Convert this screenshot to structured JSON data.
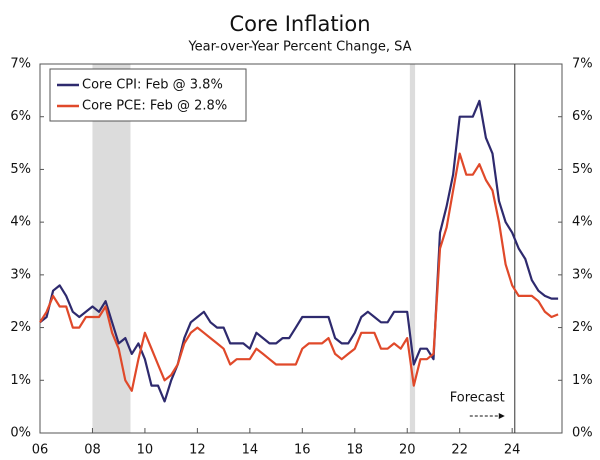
{
  "chart_data": {
    "type": "line",
    "title": "Core Inflation",
    "subtitle": "Year-over-Year Percent Change, SA",
    "x": [
      2006,
      2006.25,
      2006.5,
      2006.75,
      2007,
      2007.25,
      2007.5,
      2007.75,
      2008,
      2008.25,
      2008.5,
      2008.75,
      2009,
      2009.25,
      2009.5,
      2009.75,
      2010,
      2010.25,
      2010.5,
      2010.75,
      2011,
      2011.25,
      2011.5,
      2011.75,
      2012,
      2012.25,
      2012.5,
      2012.75,
      2013,
      2013.25,
      2013.5,
      2013.75,
      2014,
      2014.25,
      2014.5,
      2014.75,
      2015,
      2015.25,
      2015.5,
      2015.75,
      2016,
      2016.25,
      2016.5,
      2016.75,
      2017,
      2017.25,
      2017.5,
      2017.75,
      2018,
      2018.25,
      2018.5,
      2018.75,
      2019,
      2019.25,
      2019.5,
      2019.75,
      2020,
      2020.25,
      2020.5,
      2020.75,
      2021,
      2021.25,
      2021.5,
      2021.75,
      2022,
      2022.25,
      2022.5,
      2022.75,
      2023,
      2023.25,
      2023.5,
      2023.75,
      2024,
      2024.25,
      2024.5,
      2024.75,
      2025,
      2025.25,
      2025.5,
      2025.75
    ],
    "series": [
      {
        "name": "Core CPI: Feb @ 3.8%",
        "color": "#2e2a6e",
        "values": [
          2.1,
          2.2,
          2.7,
          2.8,
          2.6,
          2.3,
          2.2,
          2.3,
          2.4,
          2.3,
          2.5,
          2.1,
          1.7,
          1.8,
          1.5,
          1.7,
          1.4,
          0.9,
          0.9,
          0.6,
          1.0,
          1.3,
          1.8,
          2.1,
          2.2,
          2.3,
          2.1,
          2.0,
          2.0,
          1.7,
          1.7,
          1.7,
          1.6,
          1.9,
          1.8,
          1.7,
          1.7,
          1.8,
          1.8,
          2.0,
          2.2,
          2.2,
          2.2,
          2.2,
          2.2,
          1.8,
          1.7,
          1.7,
          1.9,
          2.2,
          2.3,
          2.2,
          2.1,
          2.1,
          2.3,
          2.3,
          2.3,
          1.3,
          1.6,
          1.6,
          1.4,
          3.8,
          4.3,
          4.9,
          6.0,
          6.0,
          6.0,
          6.3,
          5.6,
          5.3,
          4.4,
          4.0,
          3.8,
          3.5,
          3.3,
          2.9,
          2.7,
          2.6,
          2.55,
          2.55
        ]
      },
      {
        "name": "Core PCE: Feb @ 2.8%",
        "color": "#e0492a",
        "values": [
          2.1,
          2.3,
          2.6,
          2.4,
          2.4,
          2.0,
          2.0,
          2.2,
          2.2,
          2.2,
          2.4,
          1.9,
          1.6,
          1.0,
          0.8,
          1.4,
          1.9,
          1.6,
          1.3,
          1.0,
          1.1,
          1.3,
          1.7,
          1.9,
          2.0,
          1.9,
          1.8,
          1.7,
          1.6,
          1.3,
          1.4,
          1.4,
          1.4,
          1.6,
          1.5,
          1.4,
          1.3,
          1.3,
          1.3,
          1.3,
          1.6,
          1.7,
          1.7,
          1.7,
          1.8,
          1.5,
          1.4,
          1.5,
          1.6,
          1.9,
          1.9,
          1.9,
          1.6,
          1.6,
          1.7,
          1.6,
          1.8,
          0.9,
          1.4,
          1.4,
          1.5,
          3.5,
          3.9,
          4.6,
          5.3,
          4.9,
          4.9,
          5.1,
          4.8,
          4.6,
          4.0,
          3.2,
          2.8,
          2.6,
          2.6,
          2.6,
          2.5,
          2.3,
          2.2,
          2.25
        ]
      }
    ],
    "xlim": [
      2006,
      2025.9
    ],
    "xticks": [
      {
        "value": 2006,
        "label": "06"
      },
      {
        "value": 2008,
        "label": "08"
      },
      {
        "value": 2010,
        "label": "10"
      },
      {
        "value": 2012,
        "label": "12"
      },
      {
        "value": 2014,
        "label": "14"
      },
      {
        "value": 2016,
        "label": "16"
      },
      {
        "value": 2018,
        "label": "18"
      },
      {
        "value": 2020,
        "label": "20"
      },
      {
        "value": 2022,
        "label": "22"
      },
      {
        "value": 2024,
        "label": "24"
      }
    ],
    "ylim": [
      0,
      7
    ],
    "yticks": [
      {
        "value": 0,
        "label": "0%"
      },
      {
        "value": 1,
        "label": "1%"
      },
      {
        "value": 2,
        "label": "2%"
      },
      {
        "value": 3,
        "label": "3%"
      },
      {
        "value": 4,
        "label": "4%"
      },
      {
        "value": 5,
        "label": "5%"
      },
      {
        "value": 6,
        "label": "6%"
      },
      {
        "value": 7,
        "label": "7%"
      }
    ],
    "shaded_ranges": [
      [
        2008,
        2009.45
      ],
      [
        2020.1,
        2020.3
      ]
    ],
    "forecast_start": 2024.1,
    "annotation": "Forecast",
    "legend": "upper left"
  }
}
